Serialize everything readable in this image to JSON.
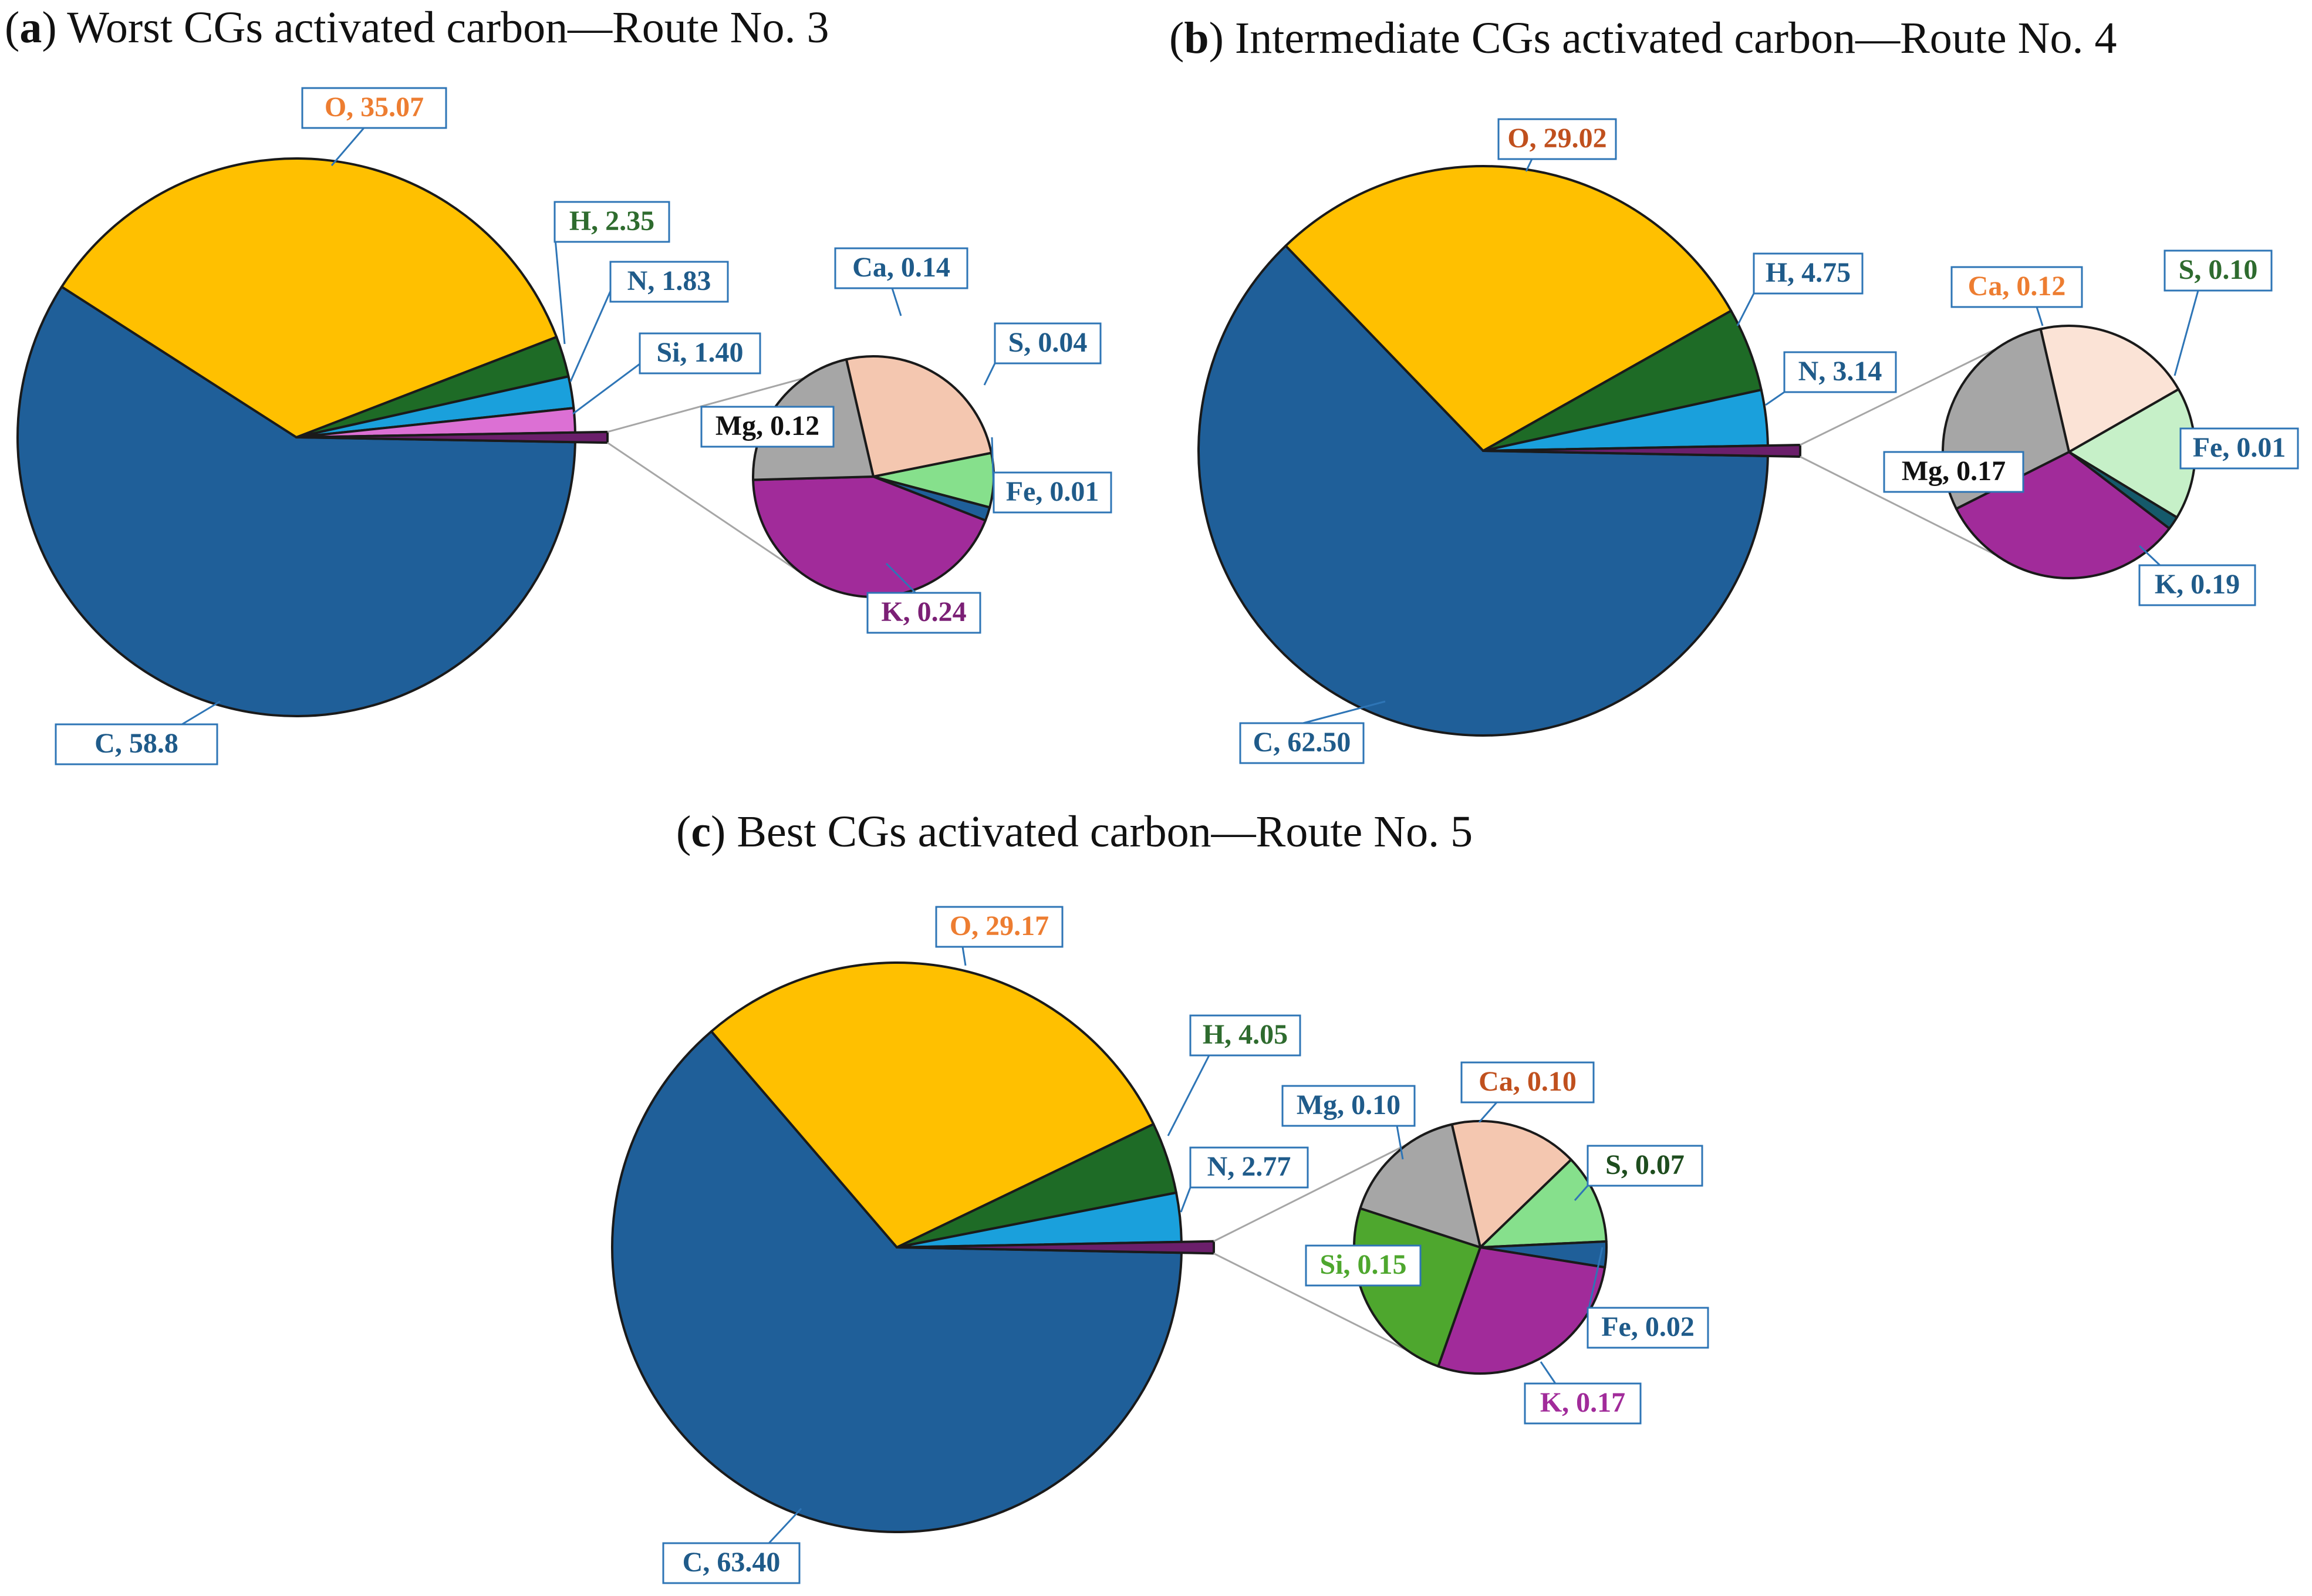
{
  "chart_data": [
    {
      "type": "pie",
      "panel": "a",
      "title": "Worst CGs activated carbon—Route No. 3",
      "title_prefix": "(",
      "title_letter": "a",
      "title_suffix": ") Worst CGs activated carbon—Route No. 3",
      "main": [
        {
          "name": "C",
          "value": 58.8,
          "label": "C, 58.8",
          "color": "#1f5f99",
          "text_color": "#1f5b8a"
        },
        {
          "name": "O",
          "value": 35.07,
          "label": "O, 35.07",
          "color": "#ffc000",
          "text_color": "#ed7d31"
        },
        {
          "name": "H",
          "value": 2.35,
          "label": "H, 2.35",
          "color": "#1e6b26",
          "text_color": "#2e6b2e"
        },
        {
          "name": "N",
          "value": 1.83,
          "label": "N, 1.83",
          "color": "#1aa0dc",
          "text_color": "#1f5b8a"
        },
        {
          "name": "Si",
          "value": 1.4,
          "label": "Si, 1.40",
          "color": "#dc70d4",
          "text_color": "#1f5b8a"
        },
        {
          "name": "Other",
          "value": 0.55,
          "label": "",
          "color": "#6b1f6b",
          "text_color": "#1f5b8a"
        }
      ],
      "sub": [
        {
          "name": "Ca",
          "value": 0.14,
          "label": "Ca, 0.14",
          "color": "#f4c7b0",
          "text_color": "#1f5b8a"
        },
        {
          "name": "S",
          "value": 0.04,
          "label": "S, 0.04",
          "color": "#86e08c",
          "text_color": "#1f5b8a"
        },
        {
          "name": "Fe",
          "value": 0.01,
          "label": "Fe, 0.01",
          "color": "#1f5f99",
          "text_color": "#1f5b8a"
        },
        {
          "name": "K",
          "value": 0.24,
          "label": "K, 0.24",
          "color": "#a12b9a",
          "text_color": "#7b1f75"
        },
        {
          "name": "Mg",
          "value": 0.12,
          "label": "Mg, 0.12",
          "color": "#a6a6a6",
          "text_color": "#111111"
        }
      ]
    },
    {
      "type": "pie",
      "panel": "b",
      "title": "Intermediate CGs activated carbon—Route No. 4",
      "title_prefix": "(",
      "title_letter": "b",
      "title_suffix": ") Intermediate CGs activated carbon—Route No. 4",
      "main": [
        {
          "name": "C",
          "value": 62.5,
          "label": "C, 62.50",
          "color": "#1f5f99",
          "text_color": "#1f5b8a"
        },
        {
          "name": "O",
          "value": 29.02,
          "label": "O, 29.02",
          "color": "#ffc000",
          "text_color": "#c0501e"
        },
        {
          "name": "H",
          "value": 4.75,
          "label": "H, 4.75",
          "color": "#1e6b26",
          "text_color": "#1f5b8a"
        },
        {
          "name": "N",
          "value": 3.14,
          "label": "N, 3.14",
          "color": "#1aa0dc",
          "text_color": "#1f5b8a"
        },
        {
          "name": "Other",
          "value": 0.59,
          "label": "",
          "color": "#6b1f6b",
          "text_color": "#1f5b8a"
        }
      ],
      "sub": [
        {
          "name": "Ca",
          "value": 0.12,
          "label": "Ca, 0.12",
          "color": "#fbe3d6",
          "text_color": "#ed7d31"
        },
        {
          "name": "S",
          "value": 0.1,
          "label": "S, 0.10",
          "color": "#c6f0c8",
          "text_color": "#2e6b2e"
        },
        {
          "name": "Fe",
          "value": 0.01,
          "label": "Fe, 0.01",
          "color": "#155a6b",
          "text_color": "#1f5b8a"
        },
        {
          "name": "K",
          "value": 0.19,
          "label": "K, 0.19",
          "color": "#a12b9a",
          "text_color": "#1f5b8a"
        },
        {
          "name": "Mg",
          "value": 0.17,
          "label": "Mg, 0.17",
          "color": "#a6a6a6",
          "text_color": "#111111"
        }
      ]
    },
    {
      "type": "pie",
      "panel": "c",
      "title": "Best CGs activated carbon—Route No. 5",
      "title_prefix": "(",
      "title_letter": "c",
      "title_suffix": ") Best CGs activated carbon—Route No. 5",
      "main": [
        {
          "name": "C",
          "value": 63.4,
          "label": "C, 63.40",
          "color": "#1f5f99",
          "text_color": "#1f5b8a"
        },
        {
          "name": "O",
          "value": 29.17,
          "label": "O, 29.17",
          "color": "#ffc000",
          "text_color": "#ed7d31"
        },
        {
          "name": "H",
          "value": 4.05,
          "label": "H, 4.05",
          "color": "#1e6b26",
          "text_color": "#2e6b2e"
        },
        {
          "name": "N",
          "value": 2.77,
          "label": "N, 2.77",
          "color": "#1aa0dc",
          "text_color": "#1f5b8a"
        },
        {
          "name": "Other",
          "value": 0.61,
          "label": "",
          "color": "#6b1f6b",
          "text_color": "#1f5b8a"
        }
      ],
      "sub": [
        {
          "name": "Ca",
          "value": 0.1,
          "label": "Ca, 0.10",
          "color": "#f4c7b0",
          "text_color": "#c0501e"
        },
        {
          "name": "S",
          "value": 0.07,
          "label": "S, 0.07",
          "color": "#86e08c",
          "text_color": "#1e4d1e"
        },
        {
          "name": "Fe",
          "value": 0.02,
          "label": "Fe, 0.02",
          "color": "#1f5f99",
          "text_color": "#1f5b8a"
        },
        {
          "name": "K",
          "value": 0.17,
          "label": "K, 0.17",
          "color": "#a12b9a",
          "text_color": "#a12b9a"
        },
        {
          "name": "Si",
          "value": 0.15,
          "label": "Si, 0.15",
          "color": "#4ea72e",
          "text_color": "#4ea72e"
        },
        {
          "name": "Mg",
          "value": 0.1,
          "label": "Mg, 0.10",
          "color": "#a6a6a6",
          "text_color": "#1f5b8a"
        }
      ]
    }
  ]
}
